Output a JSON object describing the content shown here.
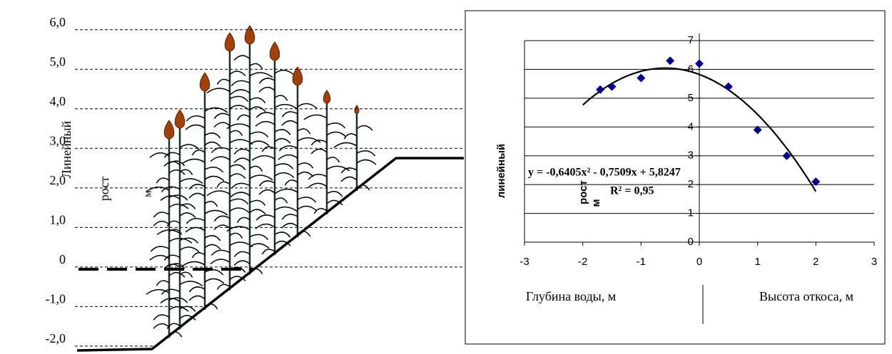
{
  "chart_data": [
    {
      "type": "diagram",
      "ylabel": [
        "Линейный",
        "рост",
        "м"
      ],
      "ylim": [
        -2.2,
        6.5
      ],
      "yticks": [
        {
          "value": 6,
          "label": "6,0"
        },
        {
          "value": 5,
          "label": "5,0"
        },
        {
          "value": 4,
          "label": "4,0"
        },
        {
          "value": 3,
          "label": "3,0"
        },
        {
          "value": 2,
          "label": "2,0"
        },
        {
          "value": 1,
          "label": "1,0"
        },
        0,
        {
          "value": -1,
          "label": "-1,0"
        },
        {
          "value": -2,
          "label": "-2,0"
        }
      ]
    },
    {
      "type": "scatter",
      "ylabel": [
        "линейный",
        "рост",
        "м"
      ],
      "xlabels": [
        "Глубина воды, м",
        "Высота откоса, м"
      ],
      "equation": "y = -0,6405x² - 0,7509x + 5,8247",
      "r_squared": "R² = 0,95",
      "x": [
        -1.7,
        -1.5,
        -1,
        -0.5,
        0,
        0.5,
        1,
        1.5,
        2
      ],
      "series": [
        {
          "color": "#000080",
          "values": [
            5.3,
            5.4,
            5.7,
            6.3,
            6.2,
            5.4,
            3.9,
            3.0,
            2.1
          ]
        }
      ],
      "trendline": {
        "degree": 2,
        "coefficients": [
          5.8247,
          -0.7509,
          -0.6405
        ],
        "x_range": [
          -2,
          2
        ],
        "color": "#000000"
      },
      "xlim": [
        -3,
        3
      ],
      "xticks": [
        -3,
        -2,
        -1,
        0,
        1,
        2,
        3
      ],
      "ylim": [
        0,
        7
      ],
      "yticks": [
        0,
        1,
        2,
        3,
        4,
        5,
        6,
        7
      ],
      "grid": true
    }
  ]
}
